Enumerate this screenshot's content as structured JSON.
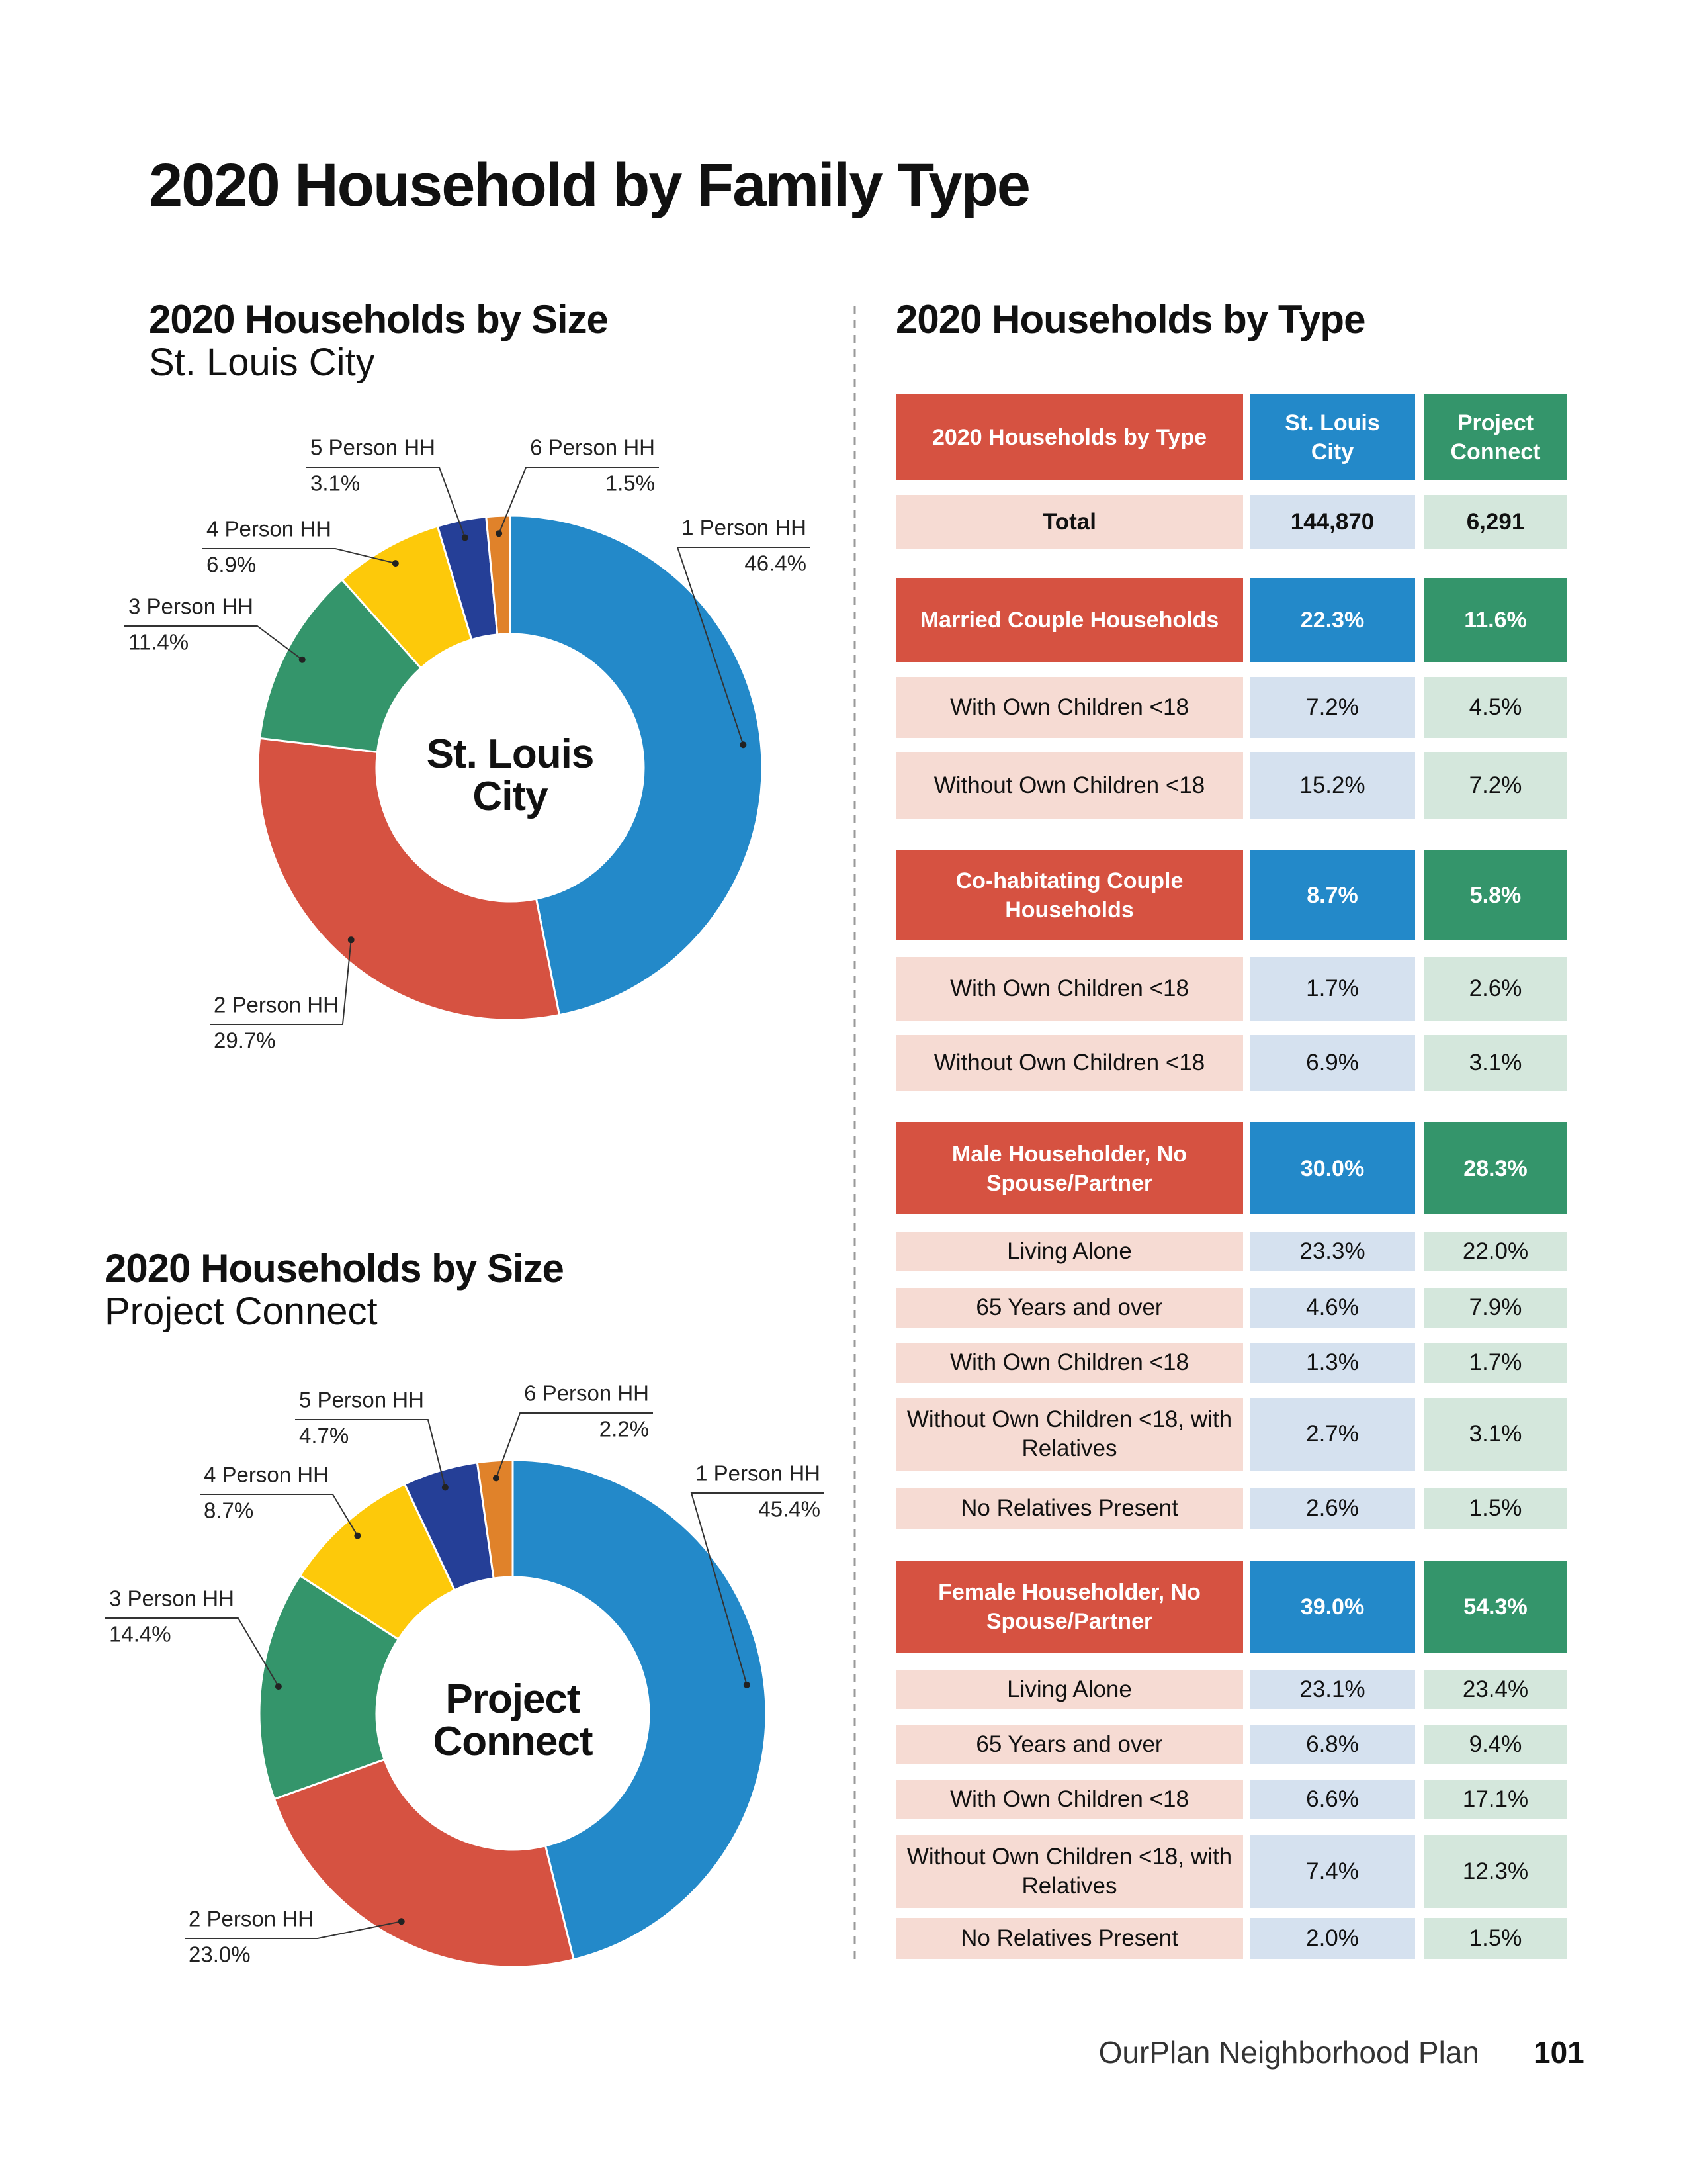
{
  "title": "2020 Household by Family Type",
  "chart_data": [
    {
      "type": "pie",
      "title": "2020 Households by Size",
      "subtitle": "St. Louis City",
      "center_label": "St. Louis City",
      "categories": [
        "1 Person HH",
        "2 Person HH",
        "3 Person HH",
        "4 Person HH",
        "5 Person HH",
        "6 Person HH"
      ],
      "values": [
        46.4,
        29.7,
        11.4,
        6.9,
        3.1,
        1.5
      ],
      "value_labels": [
        "46.4%",
        "29.7%",
        "11.4%",
        "6.9%",
        "3.1%",
        "1.5%"
      ],
      "colors": [
        "#2389c9",
        "#d65241",
        "#34956b",
        "#fdc90a",
        "#253f97",
        "#e0822a"
      ]
    },
    {
      "type": "pie",
      "title": "2020 Households by Size",
      "subtitle": "Project Connect",
      "center_label": "Project Connect",
      "categories": [
        "1 Person HH",
        "2 Person HH",
        "3 Person HH",
        "4 Person HH",
        "5 Person HH",
        "6 Person HH"
      ],
      "values": [
        45.4,
        23.0,
        14.4,
        8.7,
        4.7,
        2.2
      ],
      "value_labels": [
        "45.4%",
        "23.0%",
        "14.4%",
        "8.7%",
        "4.7%",
        "2.2%"
      ],
      "colors": [
        "#2389c9",
        "#d65241",
        "#34956b",
        "#fdc90a",
        "#253f97",
        "#e0822a"
      ]
    }
  ],
  "table": {
    "title": "2020 Households by Type",
    "header": [
      "2020 Households by Type",
      "St. Louis City",
      "Project Connect"
    ],
    "rows": [
      [
        "Total",
        "144,870",
        "6,291"
      ],
      [
        "Married Couple Households",
        "22.3%",
        "11.6%"
      ],
      [
        "With Own Children <18",
        "7.2%",
        "4.5%"
      ],
      [
        "Without Own Children <18",
        "15.2%",
        "7.2%"
      ],
      [
        "Co-habitating Couple Households",
        "8.7%",
        "5.8%"
      ],
      [
        "With Own Children <18",
        "1.7%",
        "2.6%"
      ],
      [
        "Without Own Children <18",
        "6.9%",
        "3.1%"
      ],
      [
        "Male Householder, No Spouse/Partner",
        "30.0%",
        "28.3%"
      ],
      [
        "Living Alone",
        "23.3%",
        "22.0%"
      ],
      [
        "65 Years and over",
        "4.6%",
        "7.9%"
      ],
      [
        "With Own Children <18",
        "1.3%",
        "1.7%"
      ],
      [
        "Without Own Children <18, with Relatives",
        "2.7%",
        "3.1%"
      ],
      [
        "No Relatives Present",
        "2.6%",
        "1.5%"
      ],
      [
        "Female Householder, No Spouse/Partner",
        "39.0%",
        "54.3%"
      ],
      [
        "Living Alone",
        "23.1%",
        "23.4%"
      ],
      [
        "65 Years and over",
        "6.8%",
        "9.4%"
      ],
      [
        "With Own Children <18",
        "6.6%",
        "17.1%"
      ],
      [
        "Without Own Children <18, with Relatives",
        "7.4%",
        "12.3%"
      ],
      [
        "No Relatives Present",
        "2.0%",
        "1.5%"
      ]
    ]
  },
  "footer": {
    "text": "OurPlan Neighborhood Plan",
    "page_number": "101"
  }
}
